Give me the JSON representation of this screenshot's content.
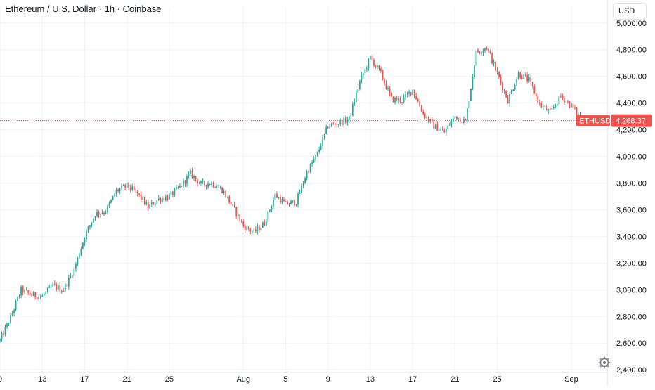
{
  "header": {
    "title": "Ethereum / U.S. Dollar · 1h · Coinbase"
  },
  "toolbar": {
    "currency_label": "USD"
  },
  "colors": {
    "up": "#26a69a",
    "down": "#ef5350",
    "grid": "#f0f3fa",
    "axis_text": "#131722",
    "price_line": "#ef5350"
  },
  "chart_data": {
    "type": "candlestick",
    "title": "Ethereum / U.S. Dollar · 1h · Coinbase",
    "xlabel": "",
    "ylabel": "",
    "ylim": [
      2380,
      5120
    ],
    "x_range": [
      "2025-07-09",
      "2025-09-02"
    ],
    "grid": true,
    "y_ticks": [
      2400,
      2600,
      2800,
      3000,
      3200,
      3400,
      3600,
      3800,
      4000,
      4200,
      4400,
      4600,
      4800,
      5000
    ],
    "y_tick_labels": [
      "2,400.00",
      "2,600.00",
      "2,800.00",
      "3,000.00",
      "3,200.00",
      "3,400.00",
      "3,600.00",
      "3,800.00",
      "4,000.00",
      "4,200.00",
      "4,400.00",
      "4,600.00",
      "4,800.00",
      "5,000.00"
    ],
    "x_ticks": [
      {
        "date": "2025-07-09",
        "label": "9"
      },
      {
        "date": "2025-07-13",
        "label": "13"
      },
      {
        "date": "2025-07-17",
        "label": "17"
      },
      {
        "date": "2025-07-21",
        "label": "21"
      },
      {
        "date": "2025-07-25",
        "label": "25"
      },
      {
        "date": "2025-08-01",
        "label": "Aug"
      },
      {
        "date": "2025-08-05",
        "label": "5"
      },
      {
        "date": "2025-08-09",
        "label": "9"
      },
      {
        "date": "2025-08-13",
        "label": "13"
      },
      {
        "date": "2025-08-17",
        "label": "17"
      },
      {
        "date": "2025-08-21",
        "label": "21"
      },
      {
        "date": "2025-08-25",
        "label": "25"
      },
      {
        "date": "2025-09-01",
        "label": "Sep"
      }
    ],
    "close_path": [
      [
        "2025-07-09",
        2620
      ],
      [
        "2025-07-10",
        2790
      ],
      [
        "2025-07-11",
        3000
      ],
      [
        "2025-07-12",
        2960
      ],
      [
        "2025-07-13",
        2950
      ],
      [
        "2025-07-14",
        3030
      ],
      [
        "2025-07-15",
        3000
      ],
      [
        "2025-07-16",
        3150
      ],
      [
        "2025-07-17",
        3400
      ],
      [
        "2025-07-18",
        3570
      ],
      [
        "2025-07-19",
        3590
      ],
      [
        "2025-07-20",
        3740
      ],
      [
        "2025-07-21",
        3780
      ],
      [
        "2025-07-22",
        3720
      ],
      [
        "2025-07-23",
        3620
      ],
      [
        "2025-07-24",
        3680
      ],
      [
        "2025-07-25",
        3700
      ],
      [
        "2025-07-26",
        3770
      ],
      [
        "2025-07-27",
        3870
      ],
      [
        "2025-07-28",
        3790
      ],
      [
        "2025-07-29",
        3800
      ],
      [
        "2025-07-30",
        3750
      ],
      [
        "2025-07-31",
        3620
      ],
      [
        "2025-08-01",
        3480
      ],
      [
        "2025-08-02",
        3430
      ],
      [
        "2025-08-03",
        3500
      ],
      [
        "2025-08-04",
        3710
      ],
      [
        "2025-08-05",
        3640
      ],
      [
        "2025-08-06",
        3660
      ],
      [
        "2025-08-07",
        3880
      ],
      [
        "2025-08-08",
        4020
      ],
      [
        "2025-08-09",
        4230
      ],
      [
        "2025-08-10",
        4250
      ],
      [
        "2025-08-11",
        4280
      ],
      [
        "2025-08-12",
        4560
      ],
      [
        "2025-08-13",
        4740
      ],
      [
        "2025-08-14",
        4620
      ],
      [
        "2025-08-15",
        4430
      ],
      [
        "2025-08-16",
        4420
      ],
      [
        "2025-08-17",
        4500
      ],
      [
        "2025-08-18",
        4320
      ],
      [
        "2025-08-19",
        4230
      ],
      [
        "2025-08-20",
        4180
      ],
      [
        "2025-08-21",
        4300
      ],
      [
        "2025-08-22",
        4260
      ],
      [
        "2025-08-23",
        4780
      ],
      [
        "2025-08-24",
        4820
      ],
      [
        "2025-08-25",
        4620
      ],
      [
        "2025-08-26",
        4420
      ],
      [
        "2025-08-27",
        4620
      ],
      [
        "2025-08-28",
        4570
      ],
      [
        "2025-08-29",
        4390
      ],
      [
        "2025-08-30",
        4330
      ],
      [
        "2025-08-31",
        4450
      ],
      [
        "2025-09-01",
        4380
      ],
      [
        "2025-09-02",
        4268.37
      ]
    ],
    "last_price": {
      "symbol": "ETHUSD",
      "value": 4268.37,
      "label": "4,268.37"
    }
  }
}
